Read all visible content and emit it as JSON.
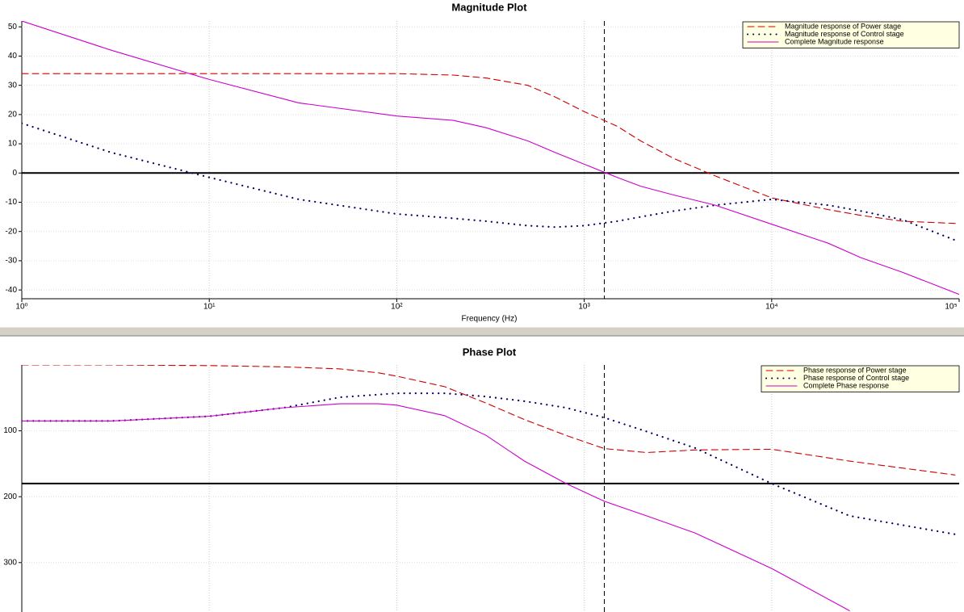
{
  "chart_data": [
    {
      "type": "line",
      "title": "Magnitude Plot",
      "x_label": "Frequency (Hz)",
      "x_scale": "log",
      "xlim": [
        1,
        100000
      ],
      "xticks": [
        {
          "value": 1,
          "label": "10⁰"
        },
        {
          "value": 10,
          "label": "10¹"
        },
        {
          "value": 100,
          "label": "10²"
        },
        {
          "value": 1000,
          "label": "10³"
        },
        {
          "value": 10000,
          "label": "10⁴"
        },
        {
          "value": 100000,
          "label": "10⁵"
        }
      ],
      "ylim": [
        -43,
        52
      ],
      "yticks": [
        -40,
        -30,
        -20,
        -10,
        0,
        10,
        20,
        30,
        40,
        50
      ],
      "grid": true,
      "legend": "upper right",
      "hline_y": 0,
      "vline_x": 1280,
      "x": [
        1,
        3,
        10,
        30,
        100,
        200,
        300,
        500,
        700,
        1000,
        1500,
        2000,
        3000,
        5000,
        10000,
        20000,
        30000,
        50000,
        100000
      ],
      "series": [
        {
          "name": "Magnitude response of Power stage",
          "color": "#cc0000",
          "style": "dashed",
          "values": [
            34,
            34,
            34,
            34,
            34,
            33.5,
            32.5,
            30,
            26,
            21,
            16,
            11,
            5,
            -1,
            -8.5,
            -12.5,
            -14.5,
            -16.5,
            -17.3
          ]
        },
        {
          "name": "Magnitude response of Control stage",
          "color": "#000066",
          "style": "dotted",
          "values": [
            17,
            7,
            -1.5,
            -9,
            -14,
            -15.5,
            -16.5,
            -18,
            -18.5,
            -18,
            -16.5,
            -15,
            -13,
            -11,
            -9,
            -11,
            -13,
            -16,
            -23.5
          ]
        },
        {
          "name": "Complete Magnitude response",
          "color": "#cc00cc",
          "style": "solid",
          "values": [
            52,
            42,
            32,
            24,
            19.5,
            18,
            15.5,
            11,
            7,
            3,
            -1.5,
            -4.5,
            -7.5,
            -11,
            -17.5,
            -24,
            -29,
            -34,
            -41.5
          ]
        }
      ]
    },
    {
      "type": "line",
      "title": "Phase Plot",
      "x_scale": "log",
      "xlim": [
        1,
        100000
      ],
      "xgrid": [
        10,
        100,
        1000,
        10000
      ],
      "ylim": [
        375,
        0
      ],
      "yticks": [
        100,
        200,
        300
      ],
      "grid": true,
      "legend": "upper right",
      "hline_y": 180,
      "vline_x": 1280,
      "x": [
        1,
        3,
        10,
        25,
        50,
        80,
        100,
        180,
        300,
        480,
        800,
        1280,
        2150,
        3900,
        10000,
        26000,
        95000
      ],
      "series": [
        {
          "name": "Phase response of Power stage",
          "color": "#cc0000",
          "style": "dashed",
          "values": [
            0,
            0,
            1,
            3,
            6,
            12,
            17,
            33,
            58,
            83,
            107,
            127,
            133,
            129,
            128,
            146,
            167
          ]
        },
        {
          "name": "Phase response of Control stage",
          "color": "#000066",
          "style": "dotted",
          "values": [
            85,
            85,
            78,
            65,
            49,
            45,
            43,
            43,
            48,
            55,
            65,
            80,
            101,
            126,
            180,
            229,
            257
          ]
        },
        {
          "name": "Complete Phase response",
          "color": "#cc00cc",
          "style": "solid",
          "values": [
            85,
            85,
            78,
            65,
            59,
            59,
            61,
            77,
            107,
            146,
            180,
            207,
            229,
            255,
            309,
            373,
            null
          ]
        }
      ]
    }
  ]
}
